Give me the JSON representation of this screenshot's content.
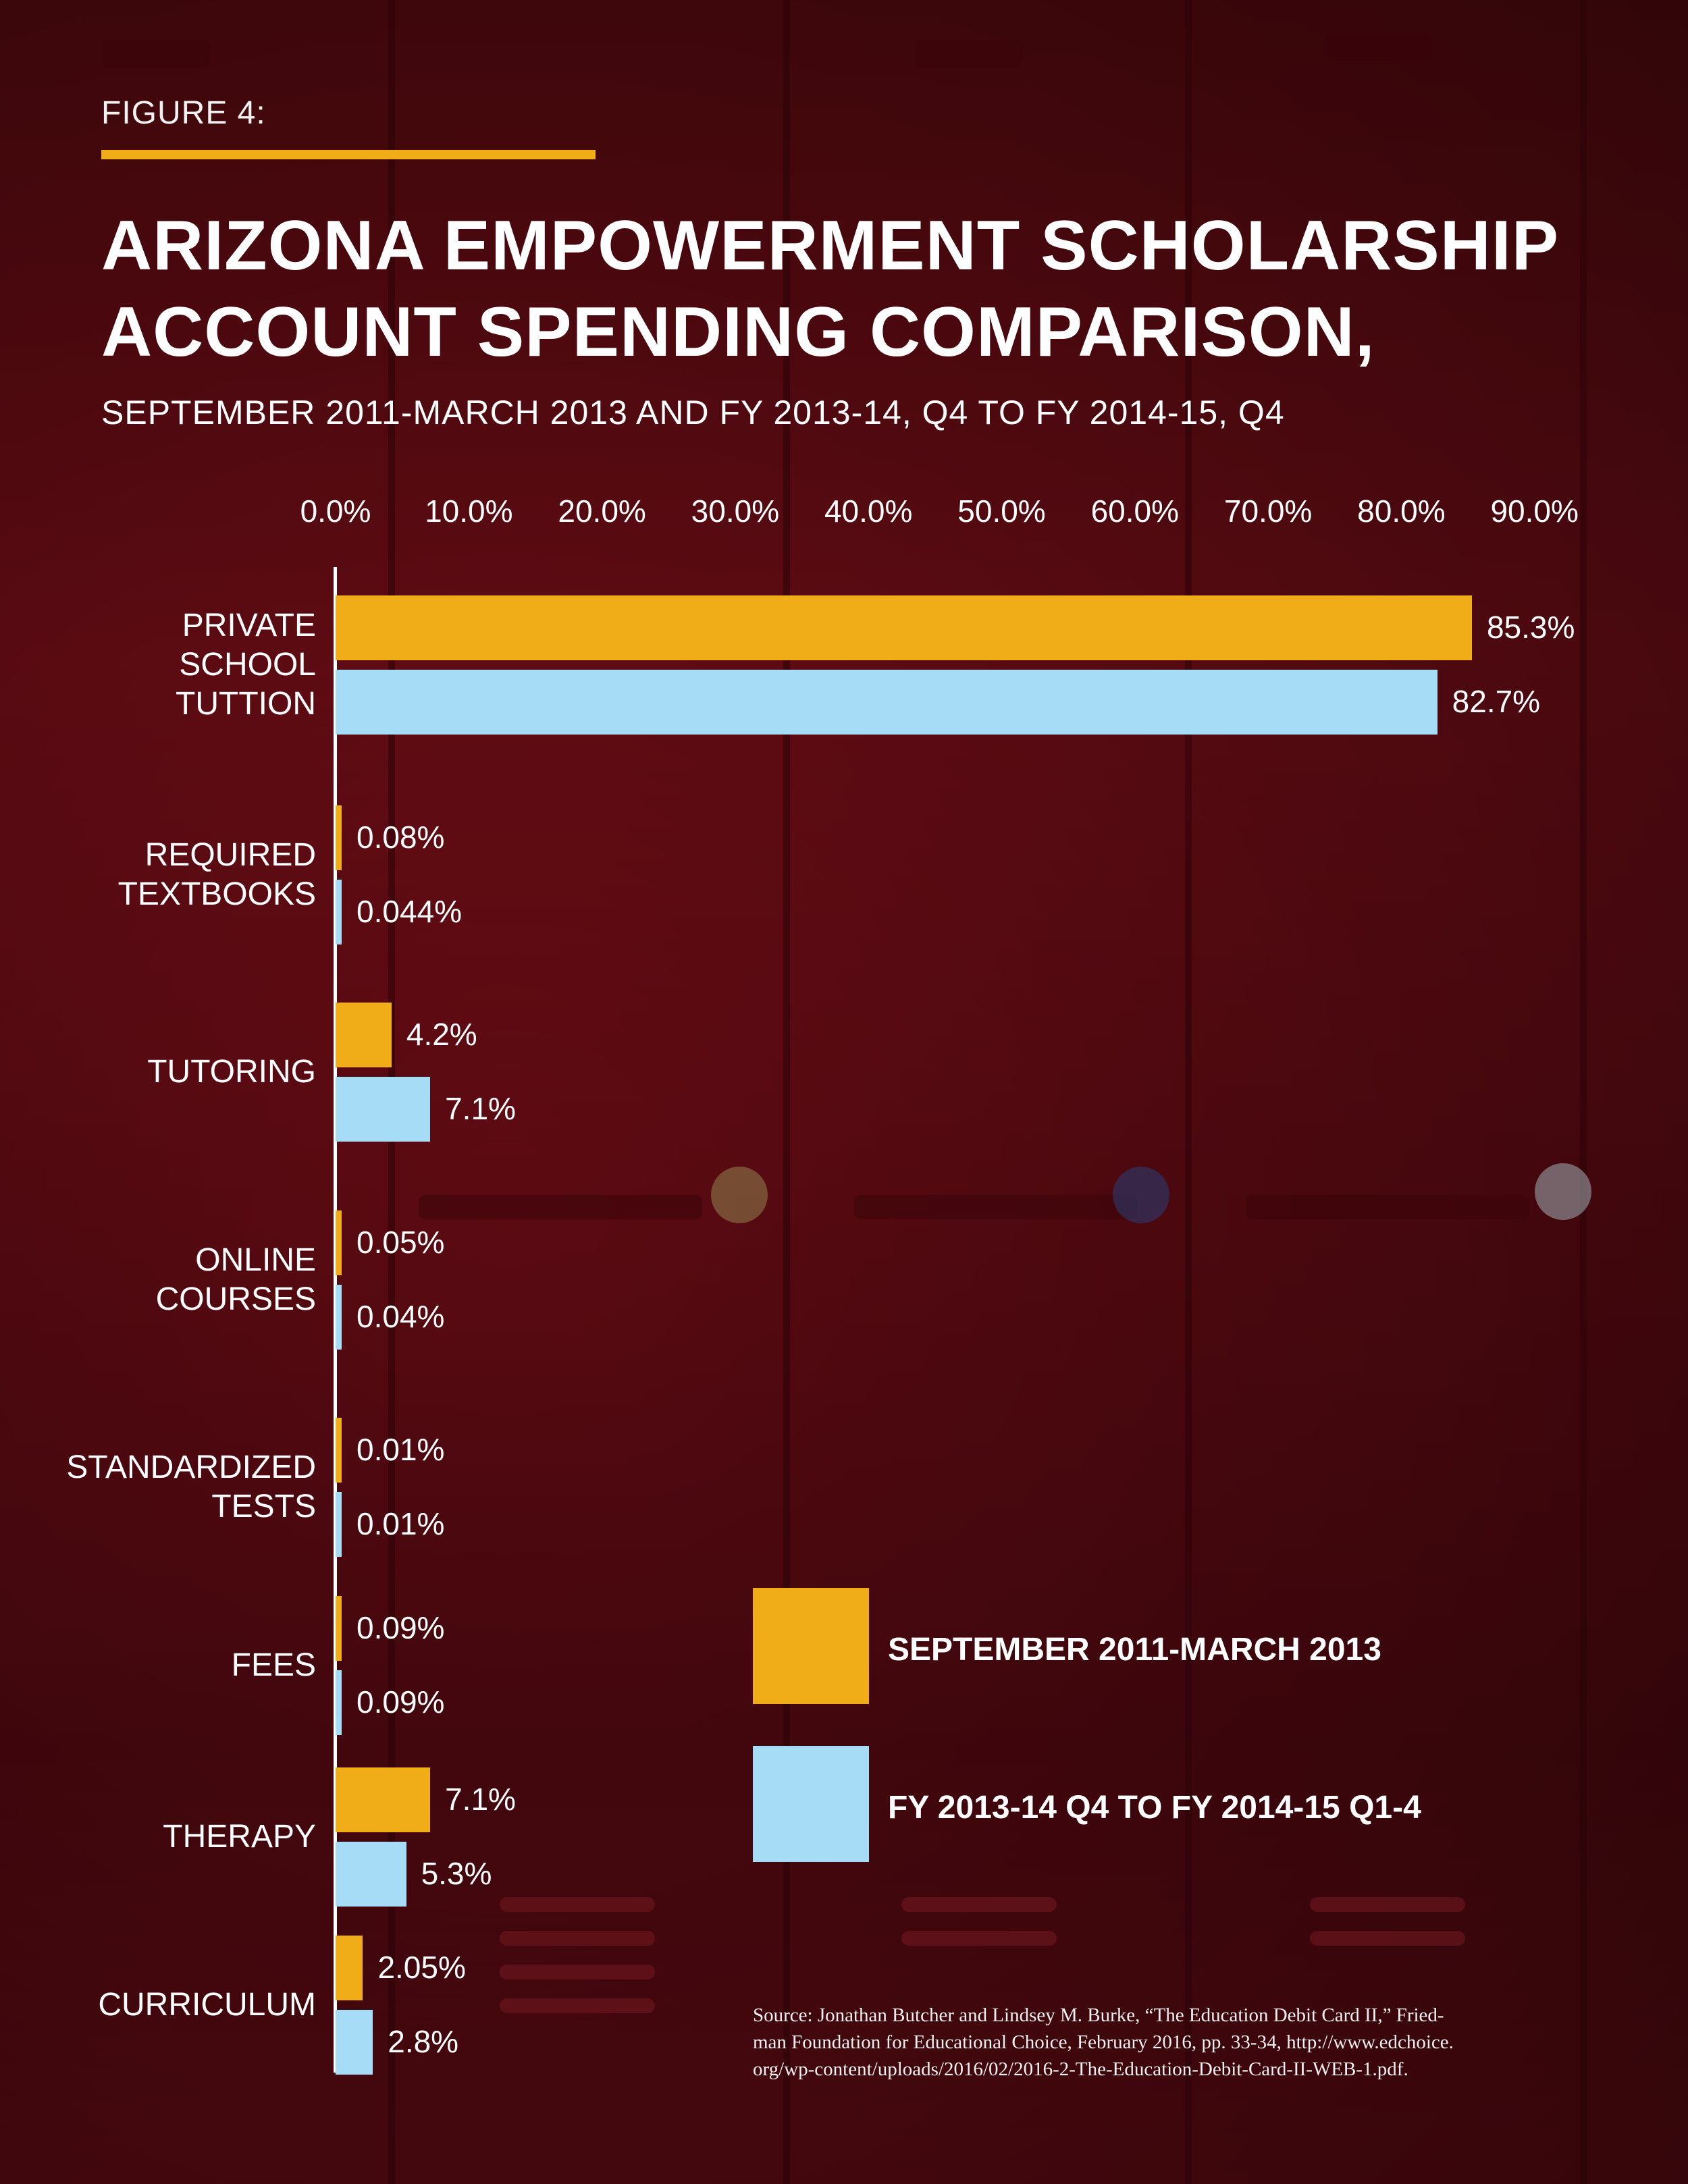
{
  "figure_label": "FIGURE 4:",
  "colors": {
    "series0": "#f0ad18",
    "series1": "#a6dcf6",
    "background": "#5e0b13"
  },
  "chart_data": {
    "type": "bar",
    "orientation": "horizontal",
    "title_line1": "ARIZONA EMPOWERMENT SCHOLARSHIP",
    "title_line2": "ACCOUNT SPENDING COMPARISON,",
    "subtitle": "SEPTEMBER 2011-MARCH 2013 AND FY 2013-14, Q4 TO FY 2014-15, Q4",
    "x_ticks": [
      "0.0%",
      "10.0%",
      "20.0%",
      "30.0%",
      "40.0%",
      "50.0%",
      "60.0%",
      "70.0%",
      "80.0%",
      "90.0%"
    ],
    "xlim": [
      0,
      90
    ],
    "legend_position": "bottom-right",
    "categories": [
      [
        "PRIVATE",
        "SCHOOL",
        "TUTTION"
      ],
      [
        "REQUIRED",
        "TEXTBOOKS"
      ],
      [
        "TUTORING"
      ],
      [
        "ONLINE",
        "COURSES"
      ],
      [
        "STANDARDIZED",
        "TESTS"
      ],
      [
        "FEES"
      ],
      [
        "THERAPY"
      ],
      [
        "CURRICULUM"
      ]
    ],
    "series": [
      {
        "name": "SEPTEMBER 2011-MARCH 2013",
        "values": [
          85.3,
          0.08,
          4.2,
          0.05,
          0.01,
          0.09,
          7.1,
          2.05
        ],
        "labels": [
          "85.3%",
          "0.08%",
          "4.2%",
          "0.05%",
          "0.01%",
          "0.09%",
          "7.1%",
          "2.05%"
        ]
      },
      {
        "name": "FY 2013-14 Q4 TO FY 2014-15 Q1-4",
        "values": [
          82.7,
          0.044,
          7.1,
          0.04,
          0.01,
          0.09,
          5.3,
          2.8
        ],
        "labels": [
          "82.7%",
          "0.044%",
          "7.1%",
          "0.04%",
          "0.01%",
          "0.09%",
          "5.3%",
          "2.8%"
        ]
      }
    ]
  },
  "source": {
    "line1": "Source: Jonathan Butcher and Lindsey M. Burke, “The Education Debit Card II,” Fried-",
    "line2": "man Foundation for Educational Choice, February 2016, pp. 33-34, http://www.edchoice.",
    "line3": "org/wp-content/uploads/2016/02/2016-2-The-Education-Debit-Card-II-WEB-1.pdf."
  }
}
